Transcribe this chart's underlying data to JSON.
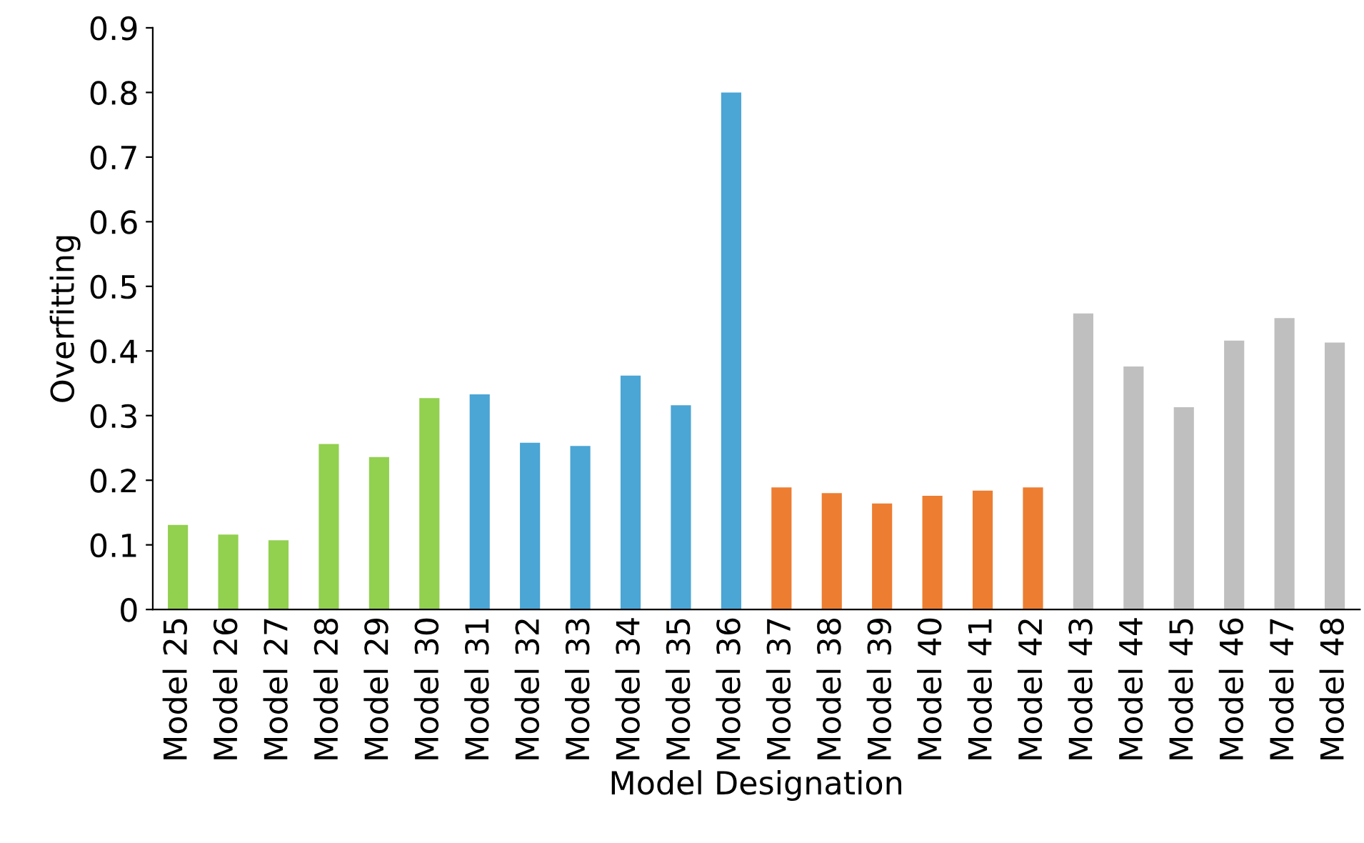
{
  "chart_data": {
    "type": "bar",
    "xlabel": "Model Designation",
    "ylabel": "Overfitting",
    "categories": [
      "Model 25",
      "Model 26",
      "Model 27",
      "Model 28",
      "Model 29",
      "Model 30",
      "Model 31",
      "Model 32",
      "Model 33",
      "Model 34",
      "Model 35",
      "Model 36",
      "Model 37",
      "Model 38",
      "Model 39",
      "Model 40",
      "Model 41",
      "Model 42",
      "Model 43",
      "Model 44",
      "Model 45",
      "Model 46",
      "Model 47",
      "Model 48"
    ],
    "values": [
      0.131,
      0.116,
      0.107,
      0.256,
      0.236,
      0.327,
      0.333,
      0.258,
      0.253,
      0.362,
      0.316,
      0.8,
      0.189,
      0.18,
      0.164,
      0.176,
      0.184,
      0.189,
      0.458,
      0.376,
      0.313,
      0.416,
      0.451,
      0.413
    ],
    "colors": [
      "#92d050",
      "#92d050",
      "#92d050",
      "#92d050",
      "#92d050",
      "#92d050",
      "#4ba5d5",
      "#4ba5d5",
      "#4ba5d5",
      "#4ba5d5",
      "#4ba5d5",
      "#4ba5d5",
      "#ed7d31",
      "#ed7d31",
      "#ed7d31",
      "#ed7d31",
      "#ed7d31",
      "#ed7d31",
      "#bfbfbf",
      "#bfbfbf",
      "#bfbfbf",
      "#bfbfbf",
      "#bfbfbf",
      "#bfbfbf"
    ],
    "ylim": [
      0,
      0.9
    ],
    "yticks": [
      0,
      0.1,
      0.2,
      0.3,
      0.4,
      0.5,
      0.6,
      0.7,
      0.8,
      0.9
    ],
    "grid": false,
    "legend": false
  }
}
